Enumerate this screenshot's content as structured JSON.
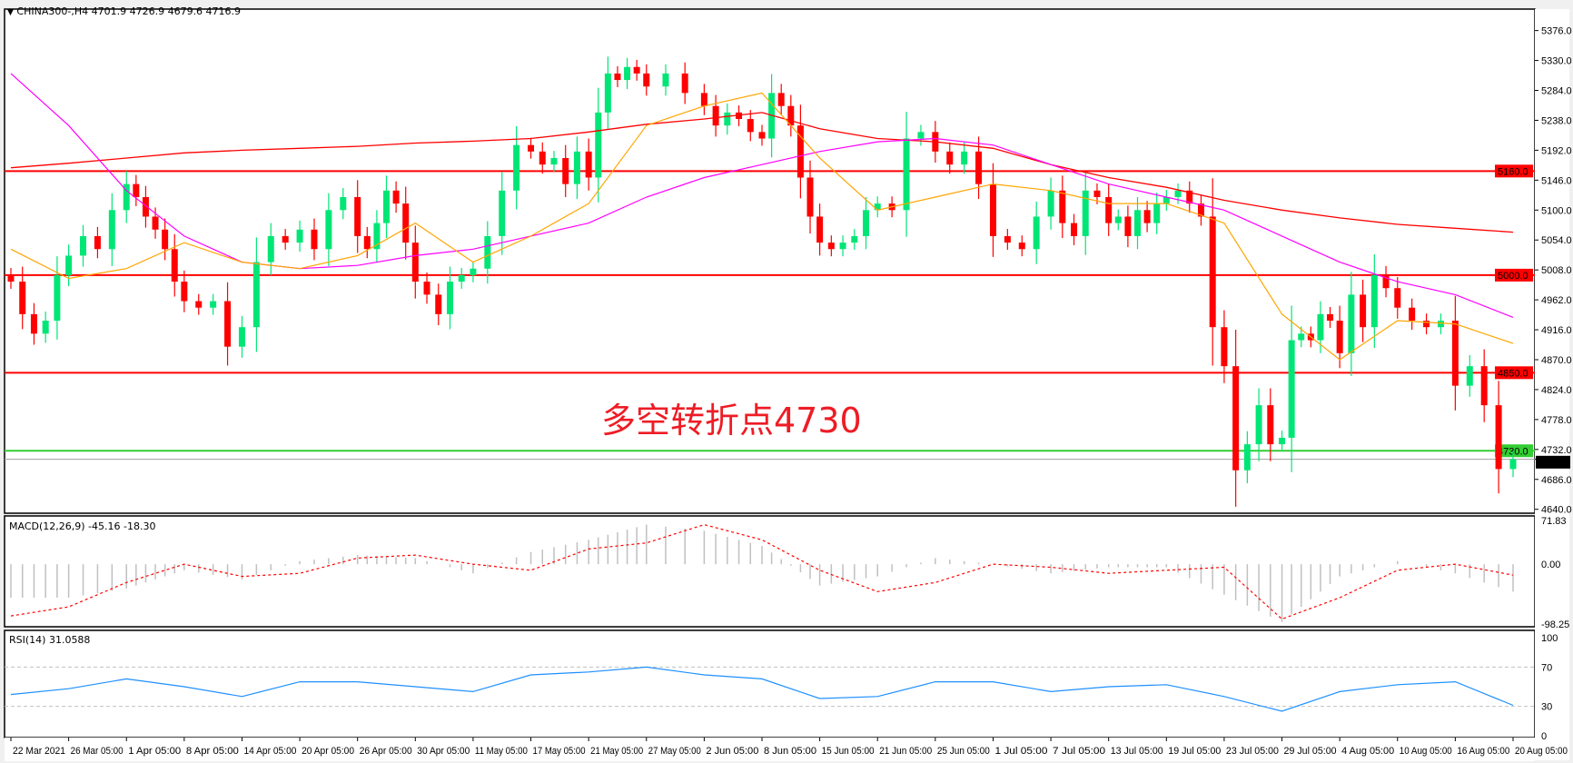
{
  "header": {
    "symbol_info": "CHINA300-,H4  4701.9 4726.9 4679.6 4716.9",
    "dropdown_icon": "triangle-down-icon"
  },
  "annotation": "多空转折点4730",
  "colors": {
    "bull": "#00e676",
    "bear": "#ff0000",
    "ma_fast": "#ffa500",
    "ma_mid": "#ff00ff",
    "ma_slow": "#ff0000",
    "support_line": "#32cd32",
    "resistance_line": "#ff0000",
    "macd_hist": "#c0c0c0",
    "macd_signal": "#ff0000",
    "rsi": "#1e90ff"
  },
  "chart_data": {
    "type": "candlestick",
    "price_axis": {
      "ylim": [
        4634,
        5409
      ],
      "ticks": [
        "5376.0",
        "5330.0",
        "5284.0",
        "5238.0",
        "5192.0",
        "5146.0",
        "5100.0",
        "5054.0",
        "5008.0",
        "4962.0",
        "4916.0",
        "4870.0",
        "4824.0",
        "4778.0",
        "4732.0",
        "4686.0",
        "4640.0"
      ]
    },
    "date_labels": [
      "22 Mar 2021",
      "26 Mar 05:00",
      "1 Apr 05:00",
      "8 Apr 05:00",
      "14 Apr 05:00",
      "20 Apr 05:00",
      "26 Apr 05:00",
      "30 Apr 05:00",
      "11 May 05:00",
      "17 May 05:00",
      "21 May 05:00",
      "27 May 05:00",
      "2 Jun 05:00",
      "8 Jun 05:00",
      "15 Jun 05:00",
      "21 Jun 05:00",
      "25 Jun 05:00",
      "1 Jul 05:00",
      "7 Jul 05:00",
      "13 Jul 05:00",
      "19 Jul 05:00",
      "23 Jul 05:00",
      "29 Jul 05:00",
      "4 Aug 05:00",
      "10 Aug 05:00",
      "16 Aug 05:00",
      "20 Aug 05:00"
    ],
    "date_label_bar_index": [
      0,
      5,
      9,
      15,
      19,
      23,
      27,
      33,
      38,
      42,
      47,
      53,
      56,
      61,
      67,
      72,
      76,
      80,
      84,
      89,
      95,
      100,
      105,
      111,
      116,
      120,
      124
    ],
    "first_open": 5000,
    "closes": [
      4990,
      4940,
      4910,
      4930,
      5000,
      5030,
      5060,
      5040,
      5100,
      5140,
      5120,
      5090,
      5070,
      5040,
      4990,
      4960,
      4950,
      4960,
      4890,
      4920,
      5020,
      5060,
      5050,
      5070,
      5040,
      5100,
      5120,
      5060,
      5040,
      5080,
      5130,
      5110,
      5050,
      4990,
      4970,
      4940,
      4990,
      5000,
      5010,
      5060,
      5130,
      5200,
      5190,
      5170,
      5180,
      5140,
      5190,
      5150,
      5250,
      5310,
      5300,
      5320,
      5310,
      5290,
      5310,
      5280,
      5260,
      5230,
      5250,
      5240,
      5220,
      5210,
      5280,
      5260,
      5230,
      5150,
      5090,
      5050,
      5040,
      5050,
      5060,
      5100,
      5110,
      5100,
      5210,
      5220,
      5190,
      5170,
      5190,
      5140,
      5060,
      5050,
      5040,
      5090,
      5130,
      5080,
      5060,
      5130,
      5120,
      5080,
      5090,
      5060,
      5100,
      5080,
      5110,
      5120,
      5130,
      5110,
      5090,
      4920,
      4860,
      4700,
      4740,
      4800,
      4740,
      4750,
      4900,
      4910,
      4900,
      4940,
      4930,
      4880,
      4970,
      4920,
      5000,
      4980,
      4950,
      4930,
      4920,
      4930,
      4830,
      4860,
      4800,
      4701.9,
      4716.9
    ],
    "moving_averages": {
      "fast": [
        5040,
        4995,
        5010,
        5050,
        5020,
        5010,
        5030,
        5080,
        5020,
        5060,
        5110,
        5230,
        5260,
        5280,
        5180,
        5100,
        5120,
        5140,
        5130,
        5110,
        5110,
        5080,
        4940,
        4870,
        4930,
        4925,
        4895
      ],
      "mid": [
        5310,
        5230,
        5130,
        5060,
        5020,
        5010,
        5015,
        5030,
        5040,
        5060,
        5080,
        5120,
        5150,
        5170,
        5190,
        5205,
        5210,
        5200,
        5170,
        5140,
        5120,
        5100,
        5060,
        5020,
        4990,
        4970,
        4935
      ],
      "slow": [
        5165,
        5172,
        5180,
        5188,
        5192,
        5195,
        5198,
        5203,
        5206,
        5210,
        5220,
        5232,
        5240,
        5250,
        5225,
        5210,
        5205,
        5195,
        5170,
        5150,
        5135,
        5115,
        5100,
        5088,
        5078,
        5072,
        5066
      ]
    },
    "horizontal_lines": [
      {
        "price": 5160.0,
        "label": "5160.0",
        "color": "#ff0000"
      },
      {
        "price": 5000.0,
        "label": "5000.0",
        "color": "#ff0000"
      },
      {
        "price": 4850.0,
        "label": "4850.0",
        "color": "#ff0000"
      },
      {
        "price": 4730.0,
        "label": "4730.0",
        "color": "#32cd32"
      },
      {
        "price": 4716.9,
        "label": "4716.9",
        "color": "#000000"
      }
    ],
    "macd": {
      "title": "MACD(12,26,9) -45.16 -18.30",
      "ylim": [
        -98.25,
        71.83
      ],
      "ticks": [
        "71.83",
        "0.00",
        "-98.25"
      ],
      "main": [
        -55,
        -55,
        -40,
        -10,
        -25,
        5,
        15,
        10,
        -15,
        20,
        40,
        65,
        55,
        30,
        -35,
        -20,
        10,
        0,
        -15,
        -5,
        -5,
        -50,
        -95,
        -20,
        5,
        -15,
        -45
      ],
      "signal": [
        -85,
        -70,
        -30,
        0,
        -20,
        -15,
        10,
        15,
        0,
        -10,
        25,
        35,
        65,
        40,
        -10,
        -45,
        -30,
        0,
        -5,
        -15,
        -10,
        -5,
        -90,
        -55,
        -10,
        0,
        -18
      ]
    },
    "rsi": {
      "title": "RSI(14) 31.0588",
      "ylim": [
        0,
        100
      ],
      "ticks": [
        "100",
        "70",
        "30",
        "0"
      ],
      "levels": [
        70,
        30
      ],
      "values": [
        42,
        48,
        58,
        50,
        40,
        55,
        55,
        50,
        45,
        62,
        65,
        70,
        62,
        58,
        38,
        40,
        55,
        55,
        45,
        50,
        52,
        40,
        25,
        45,
        52,
        55,
        31
      ]
    }
  }
}
